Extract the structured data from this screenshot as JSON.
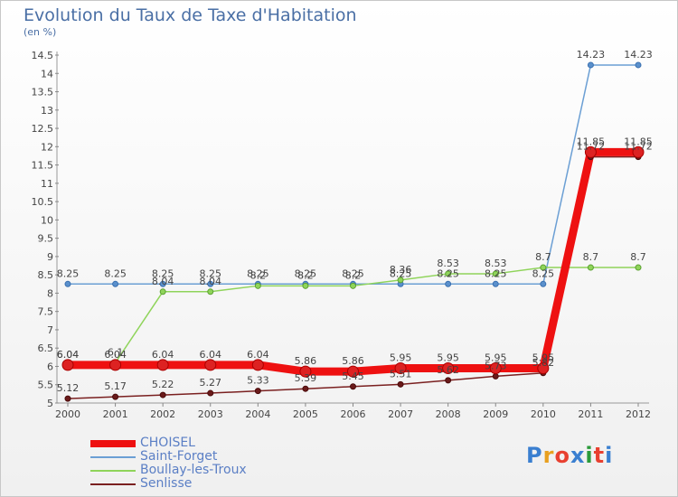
{
  "chart_data": {
    "type": "line",
    "title": "Evolution du Taux de Taxe d'Habitation",
    "unit_label": "(en %)",
    "x": [
      2000,
      2001,
      2002,
      2003,
      2004,
      2005,
      2006,
      2007,
      2008,
      2009,
      2010,
      2011,
      2012
    ],
    "ylim": [
      5,
      14.5
    ],
    "yticks": [
      5,
      5.5,
      6,
      6.5,
      7,
      7.5,
      8,
      8.5,
      9,
      9.5,
      10,
      10.5,
      11,
      11.5,
      12,
      12.5,
      13,
      13.5,
      14,
      14.5
    ],
    "grid": false,
    "legend_position": "bottom-left",
    "series": [
      {
        "name": "CHOISEL",
        "color": "#ee1111",
        "values": [
          6.04,
          6.04,
          6.04,
          6.04,
          6.04,
          5.86,
          5.86,
          5.95,
          5.95,
          5.95,
          5.95,
          11.85,
          11.85
        ]
      },
      {
        "name": "Saint-Forget",
        "color": "#6b9fd4",
        "values": [
          8.25,
          8.25,
          8.25,
          8.25,
          8.25,
          8.25,
          8.25,
          8.25,
          8.25,
          8.25,
          8.25,
          14.23,
          14.23
        ]
      },
      {
        "name": "Boullay-les-Troux",
        "color": "#8fd45a",
        "values": [
          6.04,
          6.1,
          8.04,
          8.04,
          8.2,
          8.2,
          8.2,
          8.36,
          8.53,
          8.53,
          8.7,
          8.7,
          8.7
        ]
      },
      {
        "name": "Senlisse",
        "color": "#7a2020",
        "values": [
          5.12,
          5.17,
          5.22,
          5.27,
          5.33,
          5.39,
          5.45,
          5.51,
          5.62,
          5.73,
          5.82,
          11.72,
          11.72
        ]
      }
    ],
    "data_labels": [
      [
        "6.04",
        "6.04",
        "6.04",
        "6.04",
        "6.04",
        "5.86",
        "5.86",
        "5.95",
        "5.95",
        "5.95",
        "5.95",
        "11.85",
        "11.85"
      ],
      [
        "8.25",
        "8.25",
        "8.25",
        "8.25",
        "8.25",
        "8.25",
        "8.25",
        "8.25",
        "8.25",
        "8.25",
        "8.25",
        "14.23",
        "14.23"
      ],
      [
        "6.04",
        "6.1",
        "8.04",
        "8.04",
        "8.2",
        "8.2",
        "8.2",
        "8.36",
        "8.53",
        "8.53",
        "8.7",
        "8.7",
        "8.7"
      ],
      [
        "5.12",
        "5.17",
        "5.22",
        "5.27",
        "5.33",
        "5.39",
        "5.45",
        "5.51",
        "5.62",
        "5.73",
        "5.82",
        "11.72",
        "11.72"
      ]
    ]
  },
  "logo": {
    "letters": [
      "P",
      "r",
      "o",
      "x",
      "i",
      "t",
      "i"
    ],
    "colors": [
      "#3a7fd0",
      "#e8a020",
      "#e84030",
      "#3a7fd0",
      "#2a9a3a",
      "#e84030",
      "#3a7fd0"
    ]
  }
}
